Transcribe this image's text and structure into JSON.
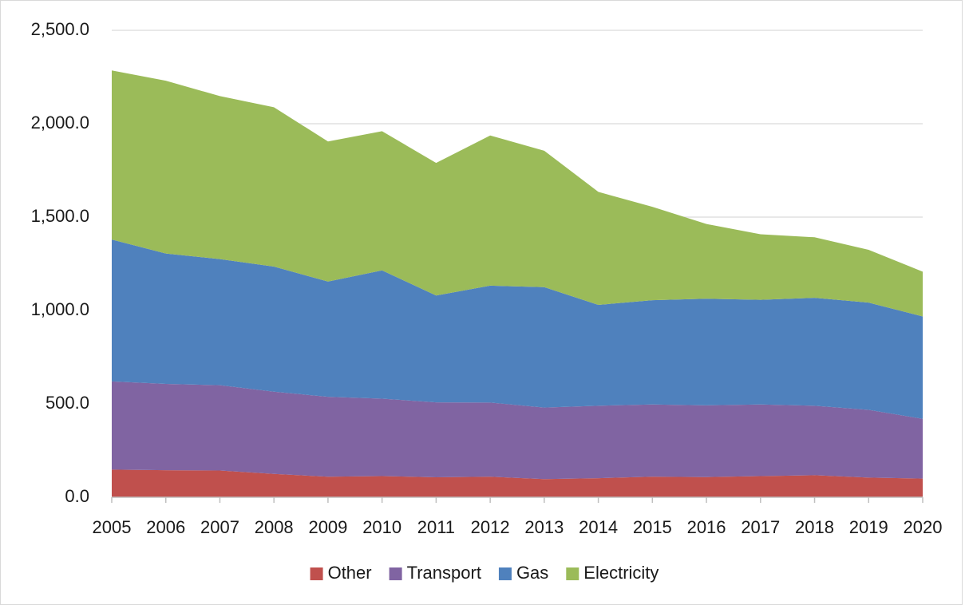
{
  "chart_data": {
    "type": "area",
    "stacked": true,
    "categories": [
      "2005",
      "2006",
      "2007",
      "2008",
      "2009",
      "2010",
      "2011",
      "2012",
      "2013",
      "2014",
      "2015",
      "2016",
      "2017",
      "2018",
      "2019",
      "2020"
    ],
    "series": [
      {
        "name": "Other",
        "color": "#c0504d",
        "values": [
          148,
          145,
          143,
          125,
          110,
          113,
          107,
          110,
          97,
          102,
          110,
          108,
          113,
          118,
          105,
          100
        ]
      },
      {
        "name": "Transport",
        "color": "#8064a2",
        "values": [
          472,
          462,
          457,
          440,
          428,
          415,
          401,
          397,
          383,
          388,
          387,
          384,
          384,
          372,
          363,
          320
        ]
      },
      {
        "name": "Gas",
        "color": "#4f81bd",
        "values": [
          760,
          698,
          675,
          670,
          617,
          687,
          572,
          626,
          645,
          540,
          558,
          571,
          560,
          578,
          574,
          548
        ]
      },
      {
        "name": "Electricity",
        "color": "#9bbb59",
        "values": [
          905,
          925,
          873,
          853,
          750,
          745,
          710,
          804,
          730,
          605,
          500,
          400,
          351,
          324,
          283,
          240
        ]
      }
    ],
    "ylim": [
      0,
      2500
    ],
    "yticks": [
      {
        "value": 0,
        "label": "0.0"
      },
      {
        "value": 500,
        "label": "500.0"
      },
      {
        "value": 1000,
        "label": "1,000.0"
      },
      {
        "value": 1500,
        "label": "1,500.0"
      },
      {
        "value": 2000,
        "label": "2,000.0"
      },
      {
        "value": 2500,
        "label": "2,500.0"
      }
    ],
    "grid": true,
    "legend": "bottom"
  }
}
